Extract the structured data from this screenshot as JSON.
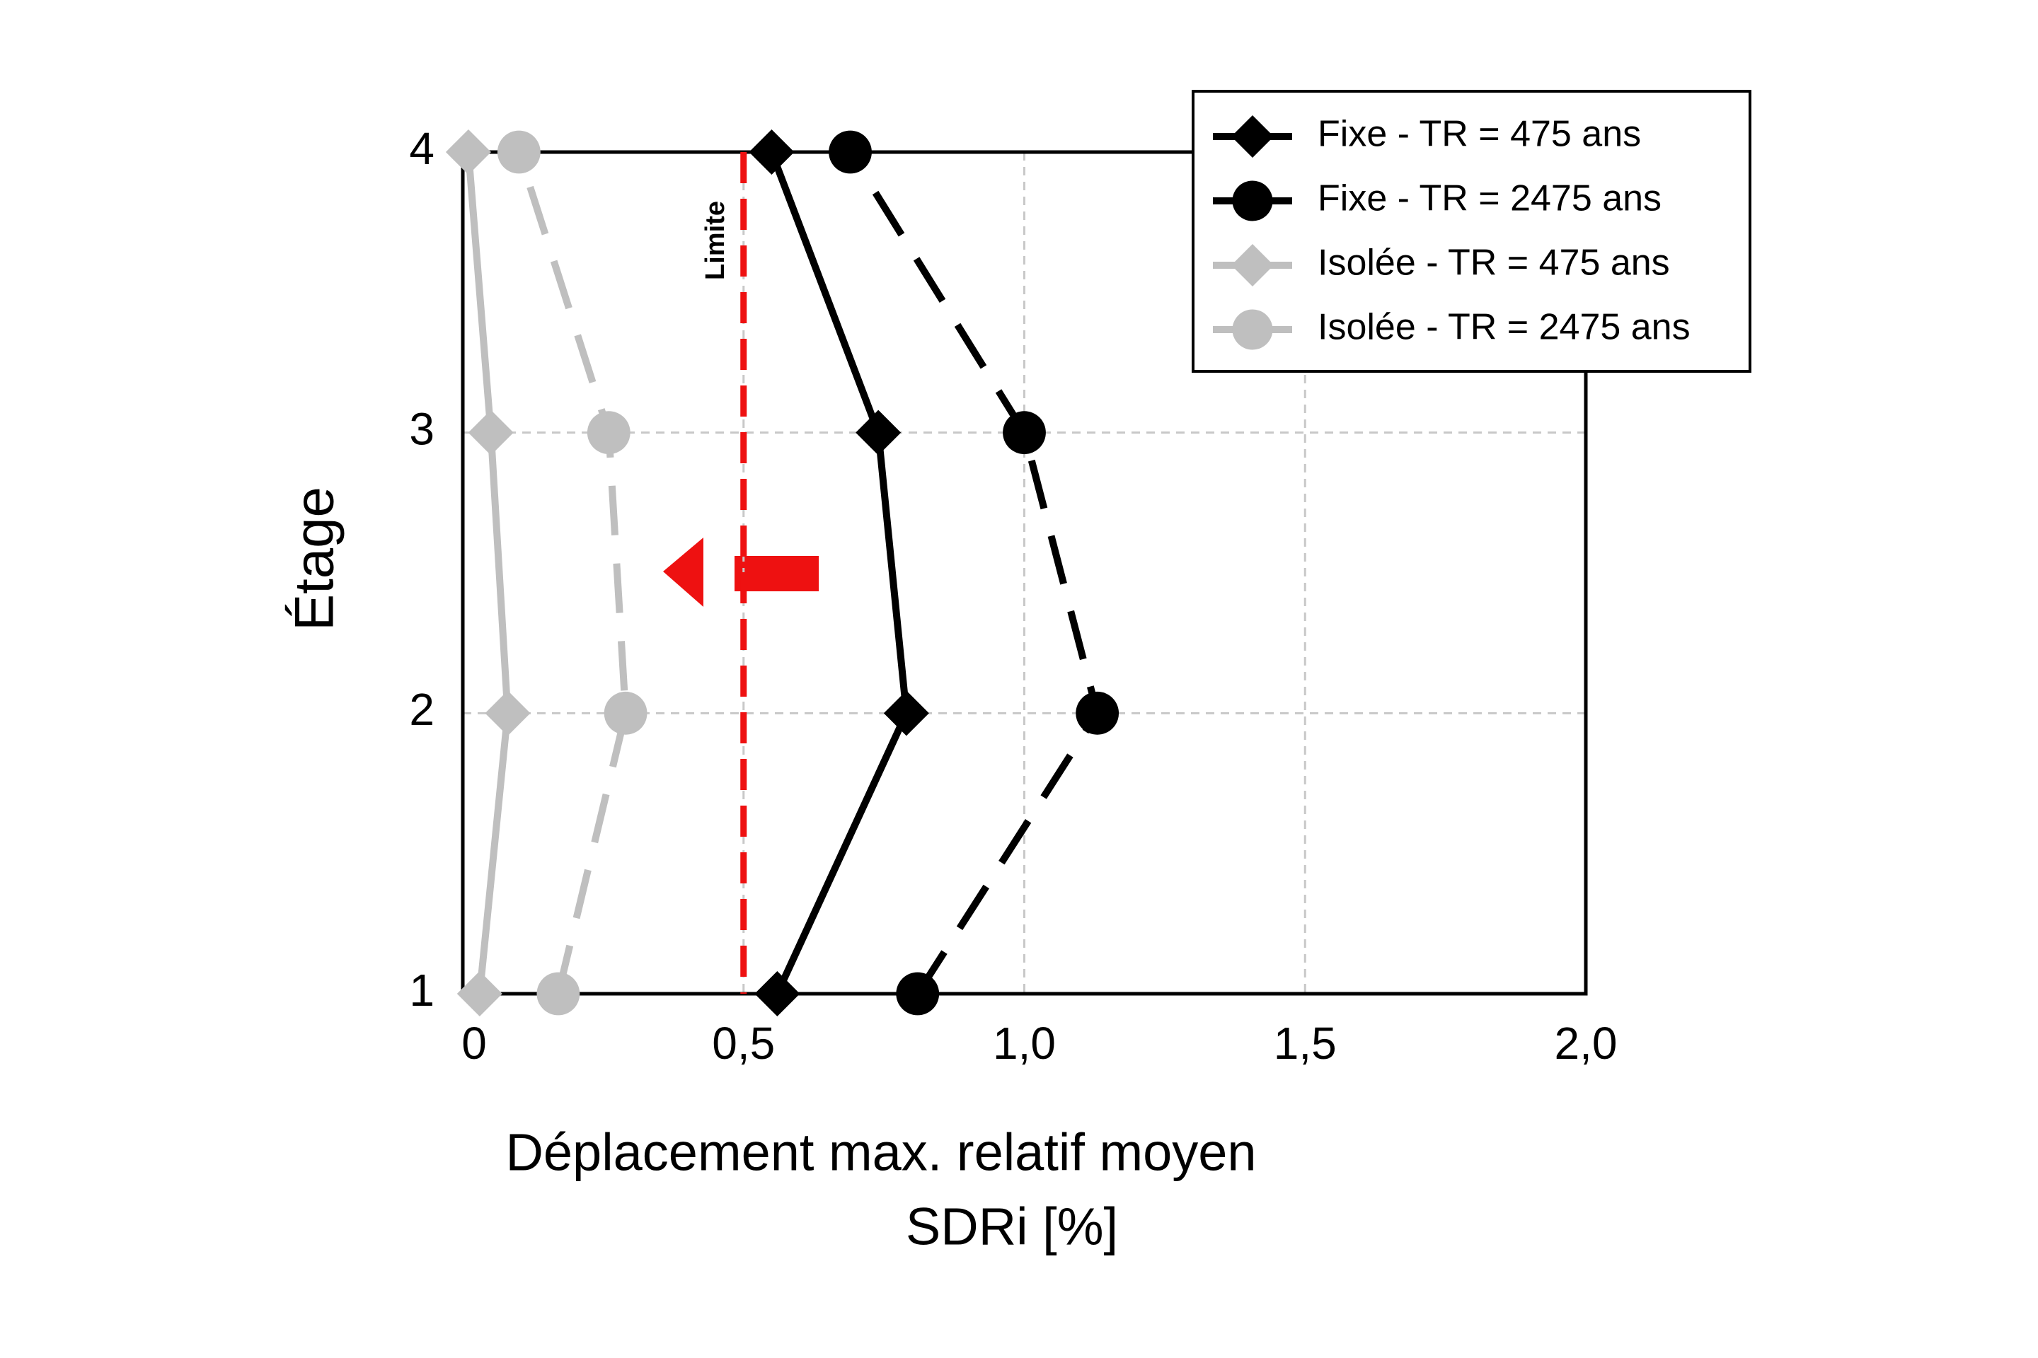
{
  "chart_data": {
    "type": "line",
    "xlabel": "Déplacement max. relatif moyen",
    "xlabel2": "SDRi [%]",
    "ylabel": "Étage",
    "xlim": [
      0,
      2.0
    ],
    "xticks": [
      0,
      {
        "value": 0.5,
        "label": "0,5"
      },
      {
        "value": 1.0,
        "label": "1,0"
      },
      {
        "value": 1.5,
        "label": "1,5"
      },
      {
        "value": 2.0,
        "label": "2,0"
      }
    ],
    "ylim": [
      1,
      4
    ],
    "yticks": [
      1,
      2,
      3,
      4
    ],
    "grid": true,
    "legend": "upper right",
    "y": [
      1,
      2,
      3,
      4
    ],
    "series": [
      {
        "name": "Fixe - TR = 475 ans",
        "color": "#000000",
        "linestyle": "solid",
        "marker": "diamond",
        "values": [
          0.56,
          0.79,
          0.74,
          0.55
        ]
      },
      {
        "name": "Fixe - TR = 2475 ans",
        "color": "#000000",
        "linestyle": "dashed",
        "marker": "circle",
        "values": [
          0.81,
          1.13,
          1.0,
          0.69
        ]
      },
      {
        "name": "Isolée - TR = 475 ans",
        "color": "#bfbfbf",
        "linestyle": "solid",
        "marker": "diamond",
        "values": [
          0.03,
          0.08,
          0.05,
          0.01
        ]
      },
      {
        "name": "Isolée - TR = 2475 ans",
        "color": "#bfbfbf",
        "linestyle": "dashed",
        "marker": "circle",
        "values": [
          0.17,
          0.29,
          0.26,
          0.1
        ]
      }
    ],
    "limit": {
      "text": "Limite",
      "x": 0.5,
      "color": "#ee1111"
    }
  }
}
